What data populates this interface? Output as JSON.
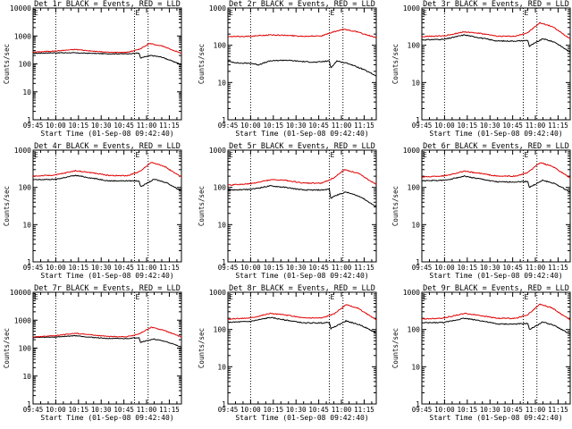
{
  "chart_data": {
    "type": "line",
    "series_names": [
      "Events",
      "LLD"
    ],
    "series_colors": {
      "Events": "#000000",
      "LLD": "#e00000"
    },
    "x_tick_labels": [
      "09:45",
      "10:00",
      "10:15",
      "10:30",
      "10:45",
      "11:00",
      "11:15"
    ],
    "x_tick_minutes": [
      0,
      15,
      30,
      45,
      60,
      75,
      90
    ],
    "xlim_minutes": [
      0,
      98
    ],
    "dotted_lines_minutes": [
      15,
      67,
      76
    ],
    "y_scale": "log",
    "ylim": [
      1,
      10000
    ],
    "x_label": "Start Time (01-Sep-08 09:42:40)",
    "y_label": "Counts/sec",
    "panels": [
      {
        "title": "Det 1r BLACK = Events, RED = LLD",
        "ytick_labels": [
          "1",
          "10",
          "100",
          "1000",
          "10000"
        ],
        "ylim": [
          1,
          10000
        ],
        "events": [
          [
            0,
            240
          ],
          [
            15,
            250
          ],
          [
            25,
            250
          ],
          [
            37,
            240
          ],
          [
            50,
            230
          ],
          [
            62,
            230
          ],
          [
            70,
            245
          ],
          [
            71,
            160
          ],
          [
            73,
            175
          ],
          [
            78,
            200
          ],
          [
            85,
            175
          ],
          [
            98,
            95
          ]
        ],
        "lld": [
          [
            0,
            265
          ],
          [
            15,
            290
          ],
          [
            28,
            330
          ],
          [
            38,
            290
          ],
          [
            50,
            260
          ],
          [
            62,
            260
          ],
          [
            70,
            330
          ],
          [
            77,
            540
          ],
          [
            85,
            440
          ],
          [
            98,
            240
          ]
        ]
      },
      {
        "title": "Det 2r BLACK = Events, RED = LLD",
        "ytick_labels": [
          "1",
          "10",
          "100",
          "1000"
        ],
        "ylim": [
          1,
          1000
        ],
        "events": [
          [
            0,
            37
          ],
          [
            8,
            33
          ],
          [
            15,
            33
          ],
          [
            20,
            30
          ],
          [
            28,
            38
          ],
          [
            38,
            40
          ],
          [
            48,
            37
          ],
          [
            58,
            35
          ],
          [
            67,
            38
          ],
          [
            68,
            25
          ],
          [
            72,
            38
          ],
          [
            80,
            32
          ],
          [
            90,
            22
          ],
          [
            98,
            15
          ]
        ],
        "lld": [
          [
            0,
            170
          ],
          [
            15,
            175
          ],
          [
            28,
            190
          ],
          [
            38,
            185
          ],
          [
            50,
            175
          ],
          [
            62,
            180
          ],
          [
            70,
            230
          ],
          [
            77,
            270
          ],
          [
            85,
            230
          ],
          [
            98,
            160
          ]
        ]
      },
      {
        "title": "Det 3r BLACK = Events, RED = LLD",
        "ytick_labels": [
          "1",
          "10",
          "100",
          "1000"
        ],
        "ylim": [
          1,
          1000
        ],
        "events": [
          [
            0,
            140
          ],
          [
            15,
            145
          ],
          [
            28,
            190
          ],
          [
            38,
            160
          ],
          [
            50,
            130
          ],
          [
            62,
            130
          ],
          [
            70,
            135
          ],
          [
            71,
            95
          ],
          [
            73,
            105
          ],
          [
            80,
            150
          ],
          [
            88,
            120
          ],
          [
            98,
            65
          ]
        ],
        "lld": [
          [
            0,
            170
          ],
          [
            15,
            180
          ],
          [
            28,
            230
          ],
          [
            38,
            210
          ],
          [
            50,
            175
          ],
          [
            62,
            175
          ],
          [
            70,
            220
          ],
          [
            78,
            400
          ],
          [
            86,
            320
          ],
          [
            98,
            150
          ]
        ]
      },
      {
        "title": "Det 4r BLACK = Events, RED = LLD",
        "ytick_labels": [
          "1",
          "10",
          "100",
          "1000"
        ],
        "ylim": [
          1,
          1000
        ],
        "events": [
          [
            0,
            160
          ],
          [
            15,
            165
          ],
          [
            28,
            210
          ],
          [
            38,
            180
          ],
          [
            50,
            150
          ],
          [
            62,
            150
          ],
          [
            70,
            150
          ],
          [
            71,
            105
          ],
          [
            73,
            115
          ],
          [
            80,
            165
          ],
          [
            88,
            135
          ],
          [
            98,
            80
          ]
        ],
        "lld": [
          [
            0,
            200
          ],
          [
            15,
            215
          ],
          [
            28,
            280
          ],
          [
            38,
            250
          ],
          [
            50,
            210
          ],
          [
            62,
            205
          ],
          [
            70,
            260
          ],
          [
            78,
            470
          ],
          [
            86,
            380
          ],
          [
            98,
            190
          ]
        ]
      },
      {
        "title": "Det 5r BLACK = Events, RED = LLD",
        "ytick_labels": [
          "1",
          "10",
          "100",
          "1000"
        ],
        "ylim": [
          1,
          1000
        ],
        "events": [
          [
            0,
            85
          ],
          [
            15,
            88
          ],
          [
            28,
            110
          ],
          [
            38,
            100
          ],
          [
            50,
            85
          ],
          [
            62,
            85
          ],
          [
            67,
            90
          ],
          [
            68,
            50
          ],
          [
            70,
            58
          ],
          [
            78,
            75
          ],
          [
            88,
            55
          ],
          [
            98,
            30
          ]
        ],
        "lld": [
          [
            0,
            115
          ],
          [
            15,
            125
          ],
          [
            28,
            160
          ],
          [
            38,
            155
          ],
          [
            50,
            130
          ],
          [
            62,
            130
          ],
          [
            70,
            180
          ],
          [
            77,
            300
          ],
          [
            86,
            240
          ],
          [
            98,
            120
          ]
        ]
      },
      {
        "title": "Det 6r BLACK = Events, RED = LLD",
        "ytick_labels": [
          "1",
          "10",
          "100",
          "1000"
        ],
        "ylim": [
          1,
          1000
        ],
        "events": [
          [
            0,
            150
          ],
          [
            15,
            155
          ],
          [
            28,
            200
          ],
          [
            38,
            170
          ],
          [
            50,
            140
          ],
          [
            62,
            140
          ],
          [
            70,
            145
          ],
          [
            71,
            100
          ],
          [
            73,
            110
          ],
          [
            80,
            155
          ],
          [
            88,
            125
          ],
          [
            98,
            75
          ]
        ],
        "lld": [
          [
            0,
            190
          ],
          [
            15,
            205
          ],
          [
            28,
            270
          ],
          [
            38,
            240
          ],
          [
            50,
            200
          ],
          [
            62,
            200
          ],
          [
            70,
            250
          ],
          [
            78,
            460
          ],
          [
            86,
            370
          ],
          [
            98,
            180
          ]
        ]
      },
      {
        "title": "Det 7r BLACK = Events, RED = LLD",
        "ytick_labels": [
          "1",
          "10",
          "100",
          "1000",
          "10000"
        ],
        "ylim": [
          1,
          10000
        ],
        "events": [
          [
            0,
            240
          ],
          [
            15,
            250
          ],
          [
            28,
            280
          ],
          [
            38,
            245
          ],
          [
            50,
            220
          ],
          [
            62,
            220
          ],
          [
            70,
            240
          ],
          [
            71,
            160
          ],
          [
            73,
            175
          ],
          [
            80,
            210
          ],
          [
            88,
            170
          ],
          [
            98,
            110
          ]
        ],
        "lld": [
          [
            0,
            250
          ],
          [
            15,
            280
          ],
          [
            28,
            340
          ],
          [
            38,
            300
          ],
          [
            50,
            260
          ],
          [
            62,
            255
          ],
          [
            70,
            320
          ],
          [
            78,
            560
          ],
          [
            86,
            440
          ],
          [
            98,
            250
          ]
        ]
      },
      {
        "title": "Det 8r BLACK = Events, RED = LLD",
        "ytick_labels": [
          "1",
          "10",
          "100",
          "1000"
        ],
        "ylim": [
          1,
          1000
        ],
        "events": [
          [
            0,
            155
          ],
          [
            15,
            165
          ],
          [
            28,
            210
          ],
          [
            38,
            180
          ],
          [
            50,
            150
          ],
          [
            62,
            150
          ],
          [
            67,
            155
          ],
          [
            68,
            105
          ],
          [
            70,
            115
          ],
          [
            78,
            170
          ],
          [
            88,
            130
          ],
          [
            98,
            80
          ]
        ],
        "lld": [
          [
            0,
            190
          ],
          [
            15,
            205
          ],
          [
            28,
            270
          ],
          [
            38,
            245
          ],
          [
            50,
            205
          ],
          [
            62,
            205
          ],
          [
            70,
            260
          ],
          [
            78,
            460
          ],
          [
            86,
            370
          ],
          [
            98,
            180
          ]
        ]
      },
      {
        "title": "Det 9r BLACK = Events, RED = LLD",
        "ytick_labels": [
          "1",
          "10",
          "100",
          "1000"
        ],
        "ylim": [
          1,
          1000
        ],
        "events": [
          [
            0,
            150
          ],
          [
            15,
            155
          ],
          [
            28,
            200
          ],
          [
            38,
            175
          ],
          [
            50,
            140
          ],
          [
            62,
            140
          ],
          [
            70,
            145
          ],
          [
            71,
            100
          ],
          [
            73,
            110
          ],
          [
            80,
            160
          ],
          [
            88,
            125
          ],
          [
            98,
            75
          ]
        ],
        "lld": [
          [
            0,
            190
          ],
          [
            15,
            205
          ],
          [
            28,
            270
          ],
          [
            38,
            240
          ],
          [
            50,
            200
          ],
          [
            62,
            200
          ],
          [
            70,
            250
          ],
          [
            78,
            480
          ],
          [
            86,
            380
          ],
          [
            98,
            180
          ]
        ]
      }
    ]
  }
}
